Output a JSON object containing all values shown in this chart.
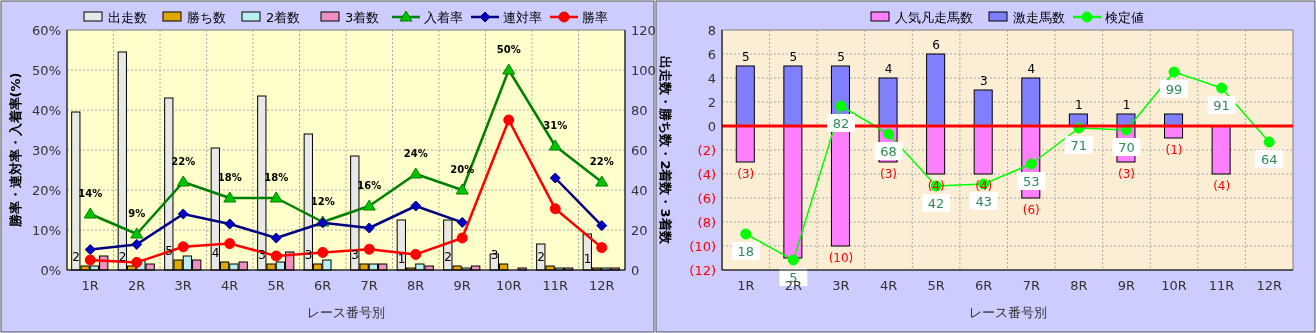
{
  "chart_data": [
    {
      "type": "bar",
      "xlabel": "レース番号別",
      "ylabel": "勝率・連対率・入着率(%)",
      "y2label": "出走数・勝ち数・2着数・3着数",
      "categories": [
        "1R",
        "2R",
        "3R",
        "4R",
        "5R",
        "6R",
        "7R",
        "8R",
        "9R",
        "10R",
        "11R",
        "12R"
      ],
      "series": [
        {
          "name": "出走数",
          "axis": "y2",
          "color": "#e8e8e8",
          "values": [
            79,
            109,
            86,
            61,
            87,
            68,
            57,
            25,
            25,
            8,
            13,
            18
          ]
        },
        {
          "name": "勝ち数",
          "axis": "y2",
          "color": "#e0a800",
          "values": [
            2,
            2,
            5,
            4,
            3,
            3,
            3,
            1,
            2,
            3,
            2,
            1
          ],
          "value_labels": [
            "2",
            "2",
            "5",
            "4",
            "3",
            "3",
            "3",
            "1",
            "2",
            "3",
            "2",
            "1"
          ]
        },
        {
          "name": "2着数",
          "axis": "y2",
          "color": "#b8f0f0",
          "values": [
            2,
            5,
            7,
            3,
            4,
            5,
            3,
            3,
            1,
            0,
            1,
            1
          ]
        },
        {
          "name": "3着数",
          "axis": "y2",
          "color": "#f090c0",
          "values": [
            7,
            3,
            5,
            4,
            9,
            0,
            3,
            2,
            2,
            1,
            1,
            1
          ]
        },
        {
          "name": "入着率",
          "type": "line",
          "color": "#008000",
          "marker": "triangle",
          "values": [
            14,
            9,
            22,
            18,
            18,
            12,
            16,
            24,
            20,
            50,
            31,
            22
          ],
          "value_labels": [
            "14%",
            "9%",
            "22%",
            "18%",
            "18%",
            "12%",
            "16%",
            "24%",
            "20%",
            "50%",
            "31%",
            "22%"
          ]
        },
        {
          "name": "連対率",
          "type": "line",
          "color": "#000080",
          "marker": "diamond",
          "values": [
            5.1,
            6.4,
            14.0,
            11.5,
            8.0,
            11.8,
            10.5,
            16.0,
            11.9,
            null,
            23.0,
            11.1
          ]
        },
        {
          "name": "勝率",
          "type": "line",
          "color": "#ff0000",
          "marker": "circle",
          "values": [
            2.5,
            1.9,
            5.8,
            6.6,
            3.5,
            4.4,
            5.2,
            3.9,
            8.0,
            37.5,
            15.3,
            5.6
          ]
        }
      ],
      "ylim": [
        0,
        60
      ],
      "yticks": [
        {
          "value": 0,
          "label": "0%"
        },
        {
          "value": 10,
          "label": "10%"
        },
        {
          "value": 20,
          "label": "20%"
        },
        {
          "value": 30,
          "label": "30%"
        },
        {
          "value": 40,
          "label": "40%"
        },
        {
          "value": 50,
          "label": "50%"
        },
        {
          "value": 60,
          "label": "60%"
        }
      ],
      "y2lim": [
        0,
        120
      ],
      "y2ticks": [
        0,
        20,
        40,
        60,
        80,
        100,
        120
      ],
      "grid": true,
      "legend": "top"
    },
    {
      "type": "bar",
      "stacked": true,
      "xlabel": "レース番号別",
      "categories": [
        "1R",
        "2R",
        "3R",
        "4R",
        "5R",
        "6R",
        "7R",
        "8R",
        "9R",
        "10R",
        "11R",
        "12R"
      ],
      "series": [
        {
          "name": "人気凡走馬数",
          "color": "#ff80ff",
          "values": [
            -3,
            -11,
            -10,
            -3,
            -4,
            -4,
            -6,
            0,
            -3,
            -1,
            -4,
            0
          ],
          "value_labels": [
            "(3)",
            null,
            "(10)",
            "(3)",
            "(4)",
            "(4)",
            "(6)",
            null,
            "(3)",
            "(1)",
            "(4)",
            null
          ]
        },
        {
          "name": "激走馬数",
          "color": "#8080ff",
          "values": [
            5,
            5,
            5,
            4,
            6,
            3,
            4,
            1,
            1,
            1,
            0,
            0
          ],
          "value_labels": [
            "5",
            "5",
            "5",
            "4",
            "6",
            "3",
            "4",
            "1",
            "1",
            null,
            null,
            null
          ]
        },
        {
          "name": "検定値",
          "type": "line",
          "axis": "y2",
          "color": "#00ff00",
          "marker": "circle",
          "values": [
            18,
            5,
            82,
            68,
            42,
            43,
            53,
            71,
            70,
            99,
            91,
            64
          ],
          "value_labels": [
            "18",
            "5",
            "82",
            "68",
            "42",
            "43",
            "53",
            "71",
            "70",
            "99",
            "91",
            "64"
          ]
        }
      ],
      "ylim": [
        -12,
        8
      ],
      "yticks": [
        {
          "value": -12,
          "label": "(12)"
        },
        {
          "value": -10,
          "label": "(10)"
        },
        {
          "value": -8,
          "label": "(8)"
        },
        {
          "value": -6,
          "label": "(6)"
        },
        {
          "value": -4,
          "label": "(4)"
        },
        {
          "value": -2,
          "label": "(2)"
        },
        0,
        2,
        4,
        6,
        8
      ],
      "y2lim": [
        0,
        120
      ],
      "ref_lines": [
        {
          "axis": "y",
          "value": 0,
          "color": "#ff0000"
        }
      ],
      "grid": true,
      "legend": "top"
    }
  ]
}
